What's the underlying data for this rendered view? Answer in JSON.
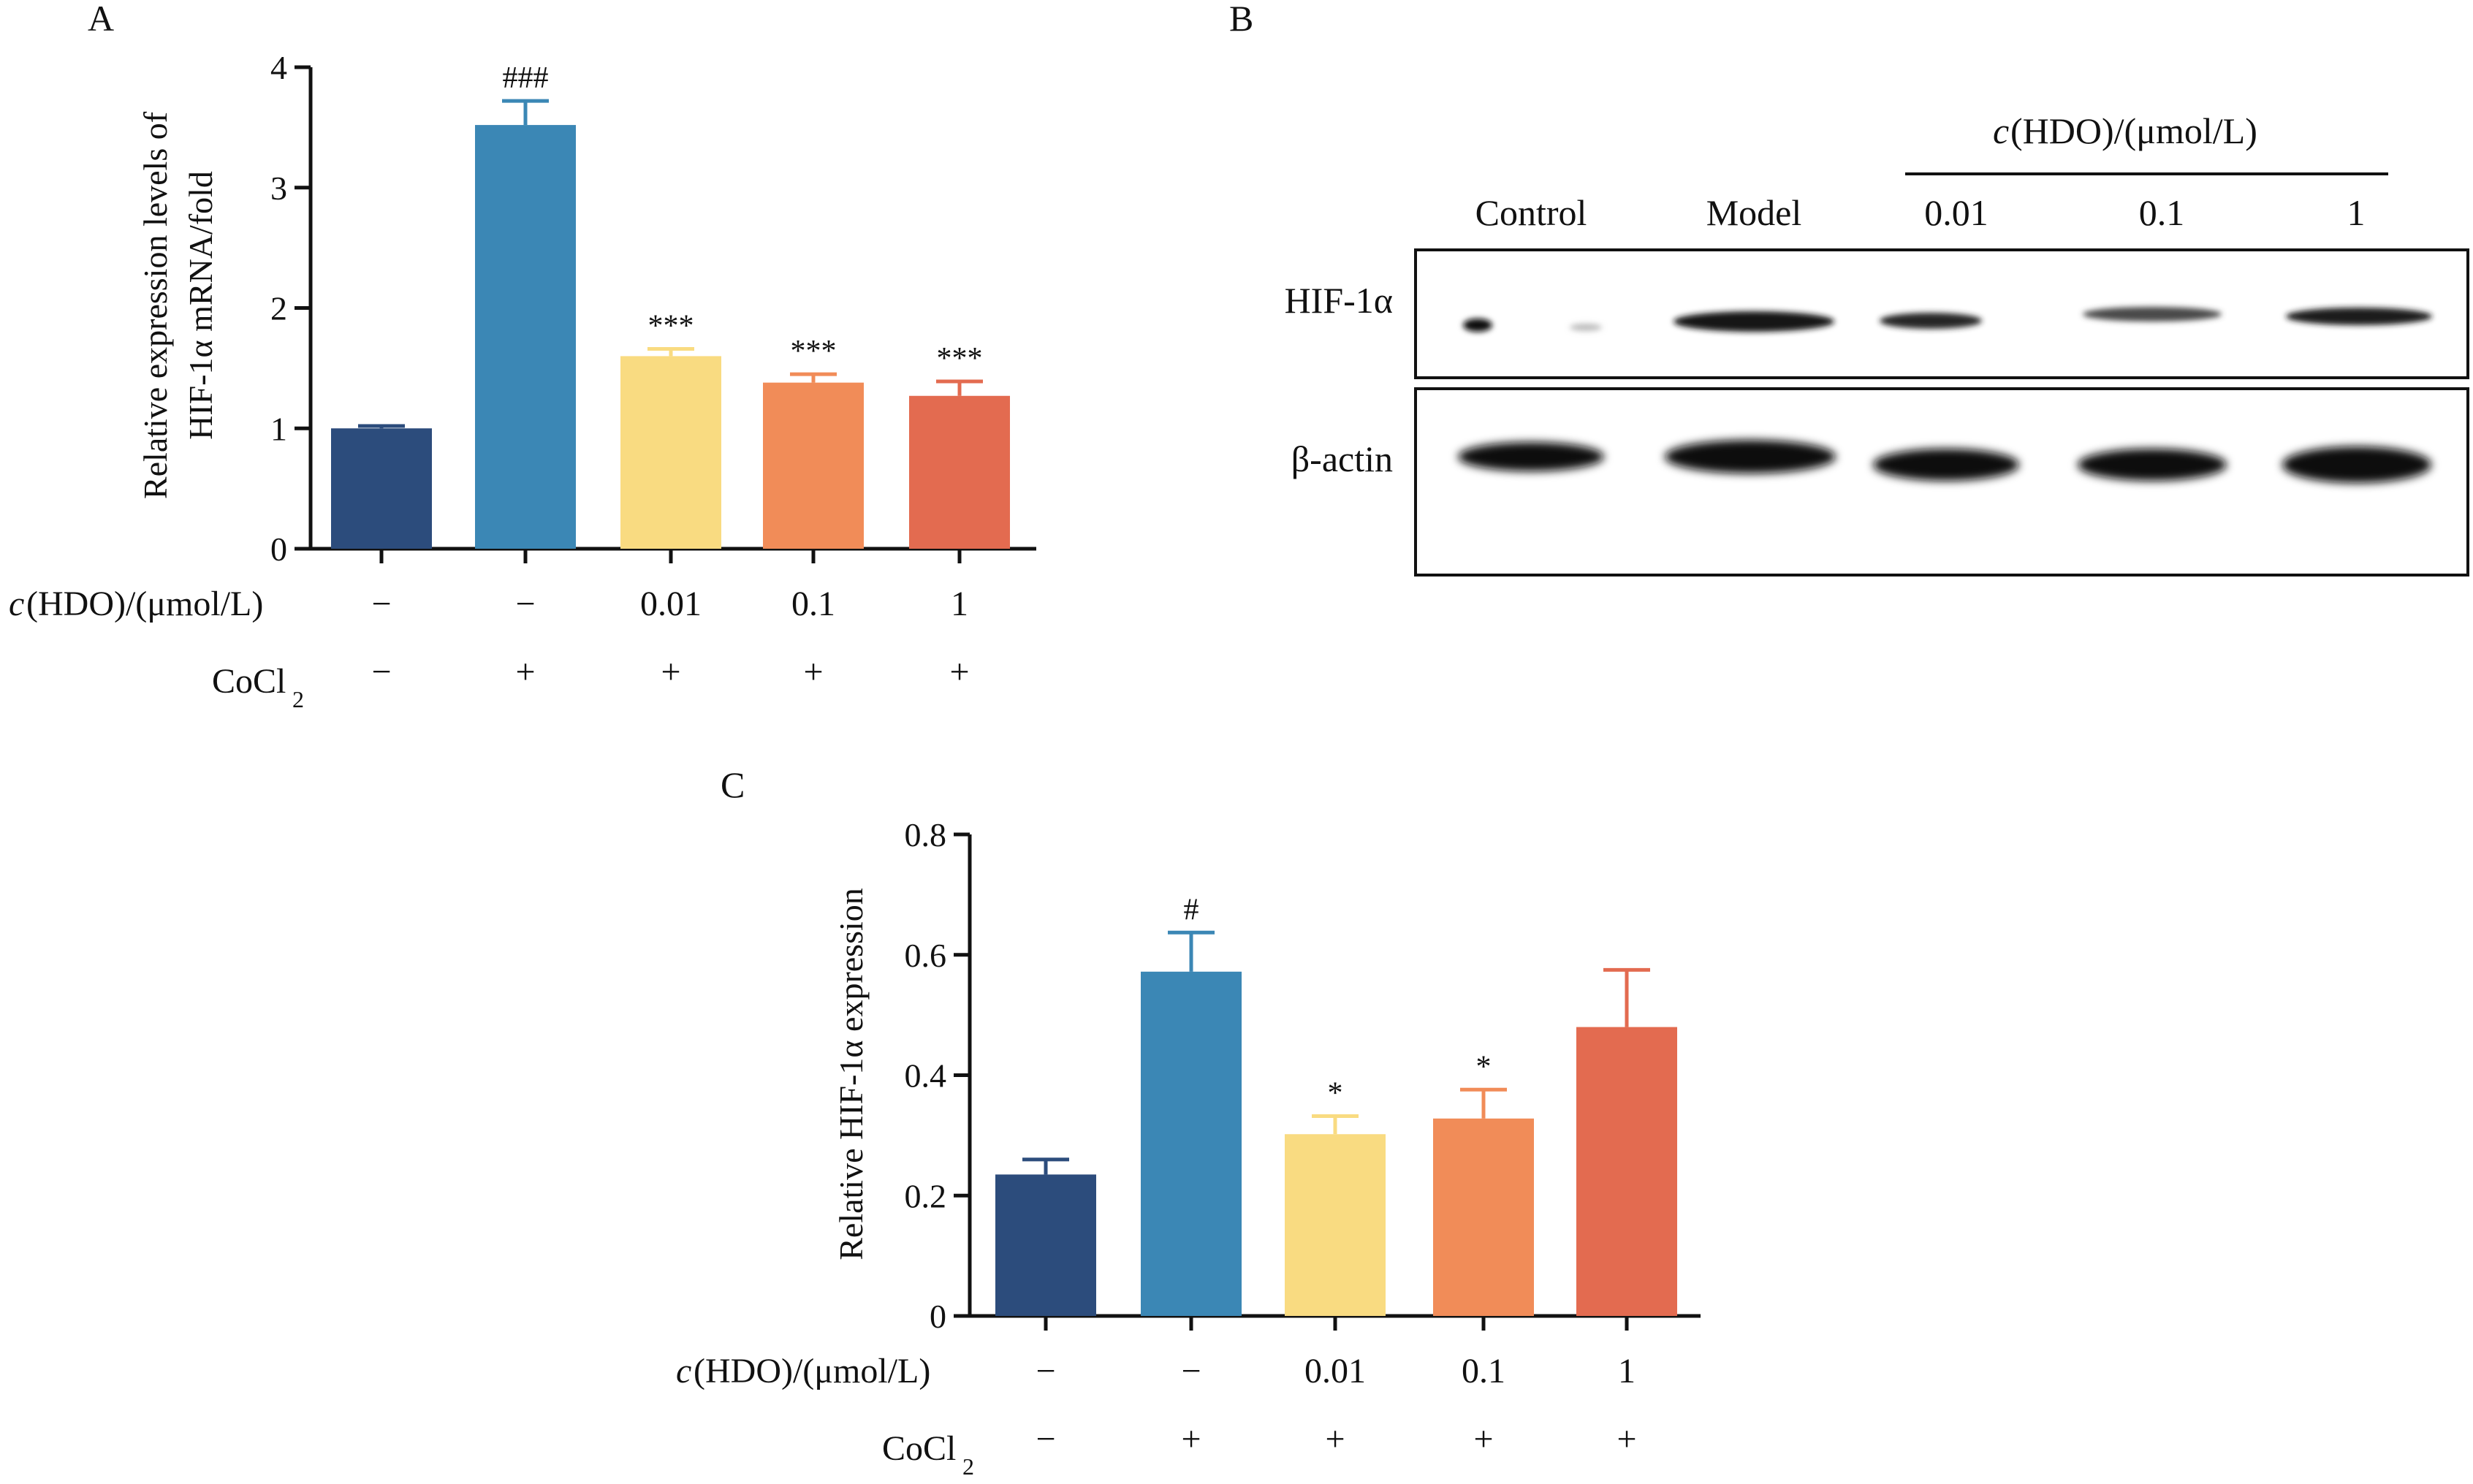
{
  "panel_labels": {
    "a": "A",
    "b": "B",
    "c": "C"
  },
  "colors": [
    "#2c4c7c",
    "#3b87b5",
    "#f9db81",
    "#f18c58",
    "#e36b50"
  ],
  "row_labels": {
    "hdo_prefix": "c",
    "hdo_rest": "(HDO)/(μmol/L)",
    "cocl2_main": "CoCl",
    "cocl2_sub": "2"
  },
  "hdo_values": [
    "−",
    "−",
    "0.01",
    "0.1",
    "1"
  ],
  "cocl2_values": [
    "−",
    "+",
    "+",
    "+",
    "+"
  ],
  "chart_data": [
    {
      "panel": "A",
      "type": "bar",
      "ylabel_line1": "Relative expression levels of",
      "ylabel_line2": "HIF-1α mRNA/fold",
      "ylim": [
        0,
        4
      ],
      "yticks": [
        "0",
        "1",
        "2",
        "3",
        "4"
      ],
      "values": [
        1.0,
        3.52,
        1.6,
        1.38,
        1.27
      ],
      "errors": [
        0.02,
        0.2,
        0.06,
        0.07,
        0.12
      ],
      "annotations": [
        "",
        "###",
        "***",
        "***",
        "***"
      ]
    },
    {
      "panel": "C",
      "type": "bar",
      "ylabel": "Relative HIF-1α expression",
      "ylim": [
        0,
        0.8
      ],
      "yticks": [
        "0",
        "0.2",
        "0.4",
        "0.6",
        "0.8"
      ],
      "values": [
        0.235,
        0.572,
        0.302,
        0.328,
        0.48
      ],
      "errors": [
        0.025,
        0.065,
        0.03,
        0.048,
        0.095
      ],
      "annotations": [
        "",
        "#",
        "*",
        "*",
        ""
      ]
    }
  ],
  "blot": {
    "header_prefix": "c",
    "header_rest": "(HDO)/(μmol/L)",
    "lanes": [
      "Control",
      "Model",
      "0.01",
      "0.1",
      "1"
    ],
    "rows": [
      "HIF-1α",
      "β-actin"
    ]
  }
}
